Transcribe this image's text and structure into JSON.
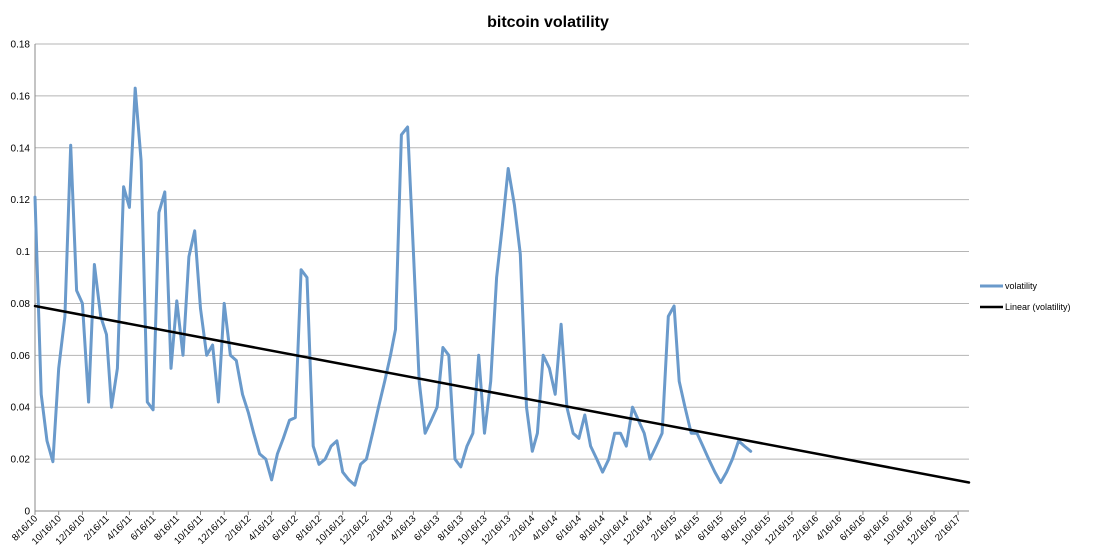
{
  "chart_data": {
    "type": "line",
    "title": "bitcoin volatility",
    "xlabel": "",
    "ylabel": "",
    "ylim": [
      0,
      0.18
    ],
    "yticks": [
      0,
      0.02,
      0.04,
      0.06,
      0.08,
      0.1,
      0.12,
      0.14,
      0.16,
      0.18
    ],
    "ytick_labels": [
      "0",
      "0.02",
      "0.04",
      "0.06",
      "0.08",
      "0.1",
      "0.12",
      "0.14",
      "0.16",
      "0.18"
    ],
    "xtick_labels": [
      "8/16/10",
      "10/16/10",
      "12/16/10",
      "2/16/11",
      "4/16/11",
      "6/16/11",
      "8/16/11",
      "10/16/11",
      "12/16/11",
      "2/16/12",
      "4/16/12",
      "6/16/12",
      "8/16/12",
      "10/16/12",
      "12/16/12",
      "2/16/13",
      "4/16/13",
      "6/16/13",
      "8/16/13",
      "10/16/13",
      "12/16/13",
      "2/16/14",
      "4/16/14",
      "6/16/14",
      "8/16/14",
      "10/16/14",
      "12/16/14",
      "2/16/15",
      "4/16/15",
      "6/16/15",
      "8/16/15",
      "10/16/15",
      "12/16/15",
      "2/16/16",
      "4/16/16",
      "6/16/16",
      "8/16/16",
      "10/16/16",
      "12/16/16",
      "2/16/17"
    ],
    "grid": true,
    "legend_position": "right",
    "series": [
      {
        "name": "volatility",
        "color": "#6a9acb",
        "x": [
          "8/16/10",
          "9/1/10",
          "9/16/10",
          "10/1/10",
          "10/16/10",
          "11/1/10",
          "11/16/10",
          "12/1/10",
          "12/16/10",
          "1/1/11",
          "1/16/11",
          "2/1/11",
          "2/16/11",
          "3/1/11",
          "3/16/11",
          "4/1/11",
          "4/16/11",
          "5/1/11",
          "5/16/11",
          "6/1/11",
          "6/16/11",
          "7/1/11",
          "7/16/11",
          "8/1/11",
          "8/16/11",
          "9/1/11",
          "9/16/11",
          "10/1/11",
          "10/16/11",
          "11/1/11",
          "11/16/11",
          "12/1/11",
          "12/16/11",
          "1/1/12",
          "1/16/12",
          "2/1/12",
          "2/16/12",
          "3/1/12",
          "3/16/12",
          "4/1/12",
          "4/16/12",
          "5/1/12",
          "5/16/12",
          "6/1/12",
          "6/16/12",
          "7/1/12",
          "7/16/12",
          "8/1/12",
          "8/16/12",
          "9/1/12",
          "9/16/12",
          "10/1/12",
          "10/16/12",
          "11/1/12",
          "11/16/12",
          "12/1/12",
          "12/16/12",
          "1/1/13",
          "1/16/13",
          "2/1/13",
          "2/16/13",
          "3/1/13",
          "3/16/13",
          "4/1/13",
          "4/16/13",
          "5/1/13",
          "5/16/13",
          "6/1/13",
          "6/16/13",
          "7/1/13",
          "7/16/13",
          "8/1/13",
          "8/16/13",
          "9/1/13",
          "9/16/13",
          "10/1/13",
          "10/16/13",
          "11/1/13",
          "11/16/13",
          "12/1/13",
          "12/16/13",
          "1/1/14",
          "1/16/14",
          "2/1/14",
          "2/16/14",
          "3/1/14",
          "3/16/14",
          "4/1/14",
          "4/16/14",
          "5/1/14",
          "5/16/14",
          "6/1/14",
          "6/16/14",
          "7/1/14",
          "7/16/14",
          "8/1/14",
          "8/16/14",
          "9/1/14",
          "9/16/14",
          "10/1/14",
          "10/16/14",
          "11/1/14",
          "11/16/14",
          "12/1/14",
          "12/16/14",
          "1/1/15",
          "1/16/15",
          "2/1/15",
          "2/16/15",
          "3/1/15",
          "3/16/15",
          "4/1/15",
          "4/16/15",
          "5/1/15",
          "5/16/15",
          "6/1/15",
          "6/16/15",
          "7/1/15",
          "7/16/15",
          "8/1/15",
          "8/16/15",
          "9/1/15"
        ],
        "values": [
          0.121,
          0.045,
          0.027,
          0.019,
          0.055,
          0.075,
          0.141,
          0.085,
          0.08,
          0.042,
          0.095,
          0.075,
          0.068,
          0.04,
          0.055,
          0.125,
          0.117,
          0.163,
          0.135,
          0.042,
          0.039,
          0.115,
          0.123,
          0.055,
          0.081,
          0.06,
          0.098,
          0.108,
          0.078,
          0.06,
          0.064,
          0.042,
          0.08,
          0.06,
          0.058,
          0.045,
          0.038,
          0.03,
          0.022,
          0.02,
          0.012,
          0.022,
          0.028,
          0.035,
          0.036,
          0.093,
          0.09,
          0.025,
          0.018,
          0.02,
          0.025,
          0.027,
          0.015,
          0.012,
          0.01,
          0.018,
          0.02,
          0.03,
          0.04,
          0.05,
          0.06,
          0.07,
          0.145,
          0.148,
          0.1,
          0.05,
          0.03,
          0.035,
          0.04,
          0.063,
          0.06,
          0.02,
          0.017,
          0.025,
          0.03,
          0.06,
          0.03,
          0.05,
          0.09,
          0.11,
          0.132,
          0.118,
          0.099,
          0.04,
          0.023,
          0.03,
          0.06,
          0.055,
          0.045,
          0.072,
          0.04,
          0.03,
          0.028,
          0.037,
          0.025,
          0.02,
          0.015,
          0.02,
          0.03,
          0.03,
          0.025,
          0.04,
          0.035,
          0.03,
          0.02,
          0.025,
          0.03,
          0.075,
          0.079,
          0.05,
          0.04,
          0.03,
          0.03,
          0.025,
          0.02,
          0.015,
          0.011,
          0.015,
          0.02,
          0.027,
          0.025,
          0.023
        ]
      },
      {
        "name": "Linear (volatility)",
        "color": "#000000",
        "x": [
          "8/16/10",
          "3/16/17"
        ],
        "values": [
          0.079,
          0.011
        ]
      }
    ]
  }
}
